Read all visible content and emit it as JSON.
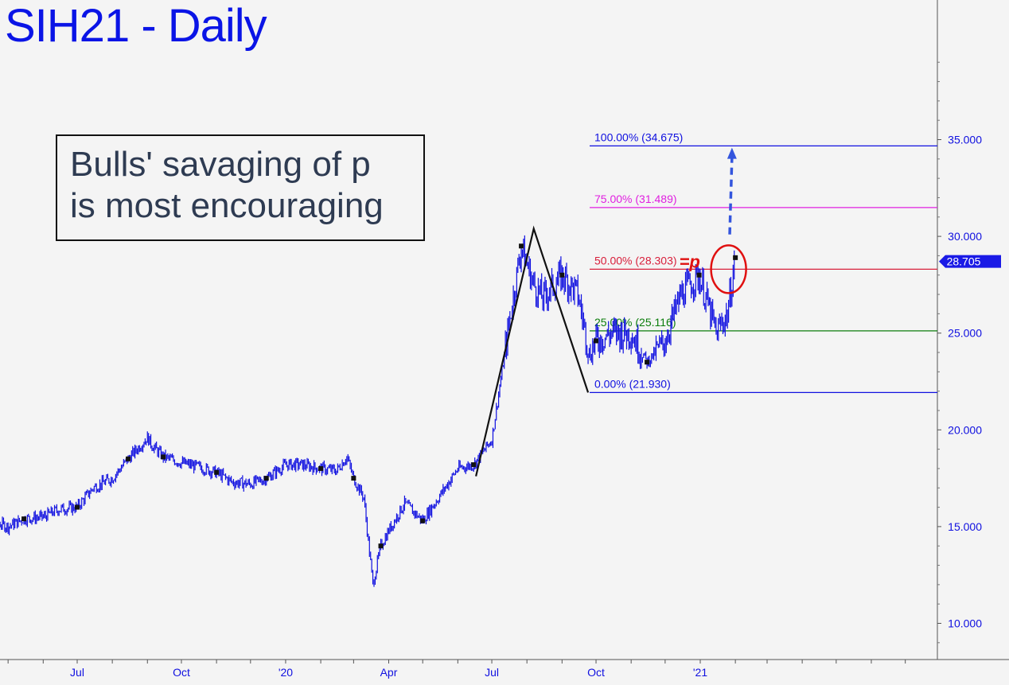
{
  "chart_data": {
    "type": "line",
    "title": "SIH21 - Daily",
    "annotation_lines": [
      "Bulls' savaging of p",
      "is most encouraging"
    ],
    "ylim": [
      8.0,
      41.5
    ],
    "y_ticks": [
      "35.000",
      "30.000",
      "25.000",
      "20.000",
      "15.000",
      "10.000"
    ],
    "x_ticks": [
      "Jul",
      "Oct",
      "'20",
      "Apr",
      "Jul",
      "Oct",
      "'21"
    ],
    "last_price": "28.705",
    "series": [
      {
        "color": "#1010e0",
        "x": [
          "2019-04-01",
          "2019-04-15",
          "2019-05-01",
          "2019-05-15",
          "2019-06-01",
          "2019-06-15",
          "2019-07-01",
          "2019-07-15",
          "2019-08-01",
          "2019-08-15",
          "2019-09-01",
          "2019-09-05",
          "2019-09-15",
          "2019-10-01",
          "2019-10-15",
          "2019-11-01",
          "2019-11-15",
          "2019-12-01",
          "2019-12-15",
          "2020-01-01",
          "2020-01-15",
          "2020-02-01",
          "2020-02-15",
          "2020-02-24",
          "2020-03-01",
          "2020-03-10",
          "2020-03-18",
          "2020-03-25",
          "2020-04-01",
          "2020-04-15",
          "2020-05-01",
          "2020-05-15",
          "2020-06-01",
          "2020-06-15",
          "2020-07-01",
          "2020-07-15",
          "2020-07-27",
          "2020-08-07",
          "2020-08-15",
          "2020-09-01",
          "2020-09-15",
          "2020-09-25",
          "2020-10-01",
          "2020-10-15",
          "2020-11-01",
          "2020-11-15",
          "2020-11-30",
          "2020-12-15",
          "2020-12-31",
          "2021-01-15",
          "2021-01-25",
          "2021-02-01"
        ],
        "y": [
          15.6,
          15.3,
          15.0,
          15.4,
          15.5,
          15.9,
          16.0,
          17.0,
          17.5,
          18.5,
          19.6,
          19.2,
          18.6,
          18.3,
          18.1,
          17.8,
          17.3,
          17.2,
          17.5,
          18.2,
          18.2,
          18.0,
          17.9,
          18.6,
          17.5,
          16.5,
          12.0,
          14.0,
          14.8,
          16.2,
          15.3,
          16.5,
          18.0,
          18.2,
          19.5,
          25.0,
          29.5,
          27.5,
          26.8,
          28.0,
          27.0,
          24.0,
          24.6,
          25.0,
          25.0,
          23.5,
          24.5,
          27.0,
          28.0,
          25.0,
          26.0,
          28.9
        ]
      }
    ],
    "fib_levels": [
      {
        "label": "100.00% (34.675)",
        "value": 34.675,
        "color": "#1010e0"
      },
      {
        "label": "75.00% (31.489)",
        "value": 31.489,
        "color": "#e01fe0"
      },
      {
        "label": "50.00% (28.303)",
        "value": 28.303,
        "color": "#d8203c"
      },
      {
        "label": "25.00% (25.116)",
        "value": 25.116,
        "color": "#0c7d0c"
      },
      {
        "label": "0.00% (21.930)",
        "value": 21.93,
        "color": "#1010e0"
      }
    ],
    "abc_pattern": {
      "x": [
        "2020-06-17",
        "2020-08-07",
        "2020-09-24"
      ],
      "y": [
        17.6,
        30.4,
        21.93
      ]
    },
    "p_marker_label": "=p",
    "target_arrow": {
      "from_x": "2021-01-27",
      "from_y": 30.1,
      "to_x": "2021-01-29",
      "to_y": 34.5
    }
  }
}
